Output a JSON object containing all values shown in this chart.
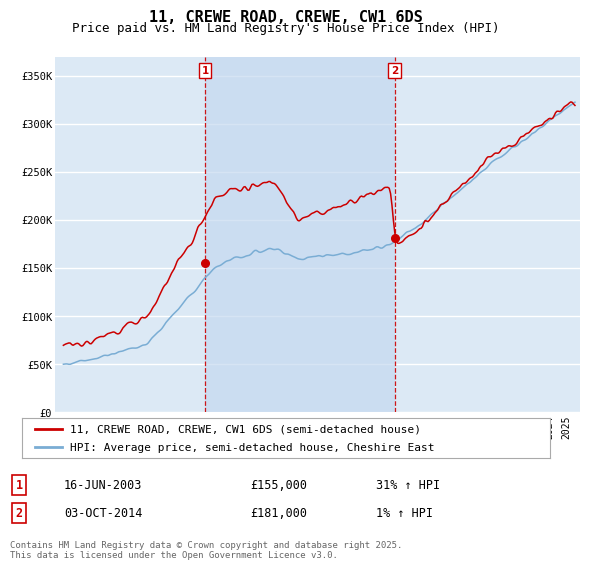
{
  "title": "11, CREWE ROAD, CREWE, CW1 6DS",
  "subtitle": "Price paid vs. HM Land Registry's House Price Index (HPI)",
  "ylim": [
    0,
    370000
  ],
  "yticks": [
    0,
    50000,
    100000,
    150000,
    200000,
    250000,
    300000,
    350000
  ],
  "ytick_labels": [
    "£0",
    "£50K",
    "£100K",
    "£150K",
    "£200K",
    "£250K",
    "£300K",
    "£350K"
  ],
  "background_color": "#ffffff",
  "plot_bg_color": "#dce9f5",
  "shade_color": "#c5d9f0",
  "grid_color": "#ffffff",
  "red_line_color": "#cc0000",
  "blue_line_color": "#7aadd4",
  "vline_color": "#cc0000",
  "vline1_x": 2003.45,
  "vline2_x": 2014.75,
  "marker1_x": 2003.45,
  "marker1_y": 155000,
  "marker2_x": 2014.75,
  "marker2_y": 181000,
  "xlim_left": 1994.5,
  "xlim_right": 2025.8,
  "legend_label_red": "11, CREWE ROAD, CREWE, CW1 6DS (semi-detached house)",
  "legend_label_blue": "HPI: Average price, semi-detached house, Cheshire East",
  "table_rows": [
    {
      "num": "1",
      "date": "16-JUN-2003",
      "price": "£155,000",
      "hpi": "31% ↑ HPI"
    },
    {
      "num": "2",
      "date": "03-OCT-2014",
      "price": "£181,000",
      "hpi": "1% ↑ HPI"
    }
  ],
  "footer": "Contains HM Land Registry data © Crown copyright and database right 2025.\nThis data is licensed under the Open Government Licence v3.0.",
  "title_fontsize": 11,
  "subtitle_fontsize": 9,
  "tick_fontsize": 7.5,
  "legend_fontsize": 8,
  "table_fontsize": 8.5,
  "footer_fontsize": 6.5
}
